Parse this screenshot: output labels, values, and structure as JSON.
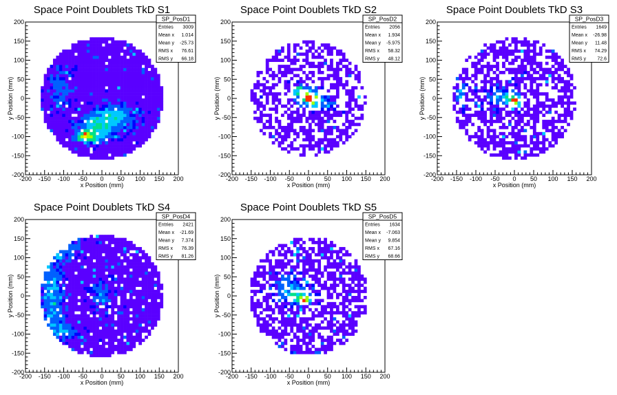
{
  "figure": {
    "background": "#ffffff",
    "colormap": [
      "#5a00ff",
      "#0000ff",
      "#0060ff",
      "#00c8ff",
      "#00e08a",
      "#a0ff00",
      "#ffee00",
      "#ff3000"
    ]
  },
  "chart_data": [
    {
      "type": "heatmap",
      "title": "Space Point Doublets TkD S1",
      "xlabel": "x Position (mm)",
      "ylabel": "y Position (mm)",
      "xlim": [
        -200,
        200
      ],
      "ylim": [
        -200,
        200
      ],
      "xticks": [
        -200,
        -150,
        -100,
        -50,
        0,
        50,
        100,
        150,
        200
      ],
      "yticks": [
        -200,
        -150,
        -100,
        -50,
        0,
        50,
        100,
        150,
        200
      ],
      "stats": {
        "name": "SP_PosD1",
        "rows": [
          [
            "Entries",
            "3009"
          ],
          [
            "Mean x",
            "1.014"
          ],
          [
            "Mean y",
            "-25.73"
          ],
          [
            "RMS x",
            "76.61"
          ],
          [
            "RMS y",
            "66.18"
          ]
        ]
      },
      "data_radius": 160,
      "fill_fraction": 0.97,
      "hotspots": [
        {
          "x": -40,
          "y": -100,
          "sx": 20,
          "sy": 10,
          "w": 4.0
        },
        {
          "x": -10,
          "y": -75,
          "sx": 35,
          "sy": 20,
          "w": 2.5
        },
        {
          "x": 30,
          "y": -45,
          "sx": 40,
          "sy": 20,
          "w": 2.0
        },
        {
          "x": -110,
          "y": 30,
          "sx": 20,
          "sy": 40,
          "w": 1.2
        }
      ]
    },
    {
      "type": "heatmap",
      "title": "Space Point Doublets TkD S2",
      "xlabel": "x Position (mm)",
      "ylabel": "y Position (mm)",
      "xlim": [
        -200,
        200
      ],
      "ylim": [
        -200,
        200
      ],
      "xticks": [
        -200,
        -150,
        -100,
        -50,
        0,
        50,
        100,
        150,
        200
      ],
      "yticks": [
        -200,
        -150,
        -100,
        -50,
        0,
        50,
        100,
        150,
        200
      ],
      "stats": {
        "name": "SP_PosD2",
        "rows": [
          [
            "Entries",
            "2056"
          ],
          [
            "Mean x",
            "1.934"
          ],
          [
            "Mean y",
            "-5.975"
          ],
          [
            "RMS x",
            "58.32"
          ],
          [
            "RMS y",
            "48.12"
          ]
        ]
      },
      "data_radius": 150,
      "fill_fraction": 0.55,
      "hotspots": [
        {
          "x": 5,
          "y": 0,
          "sx": 15,
          "sy": 10,
          "w": 5.0
        },
        {
          "x": -15,
          "y": 15,
          "sx": 25,
          "sy": 12,
          "w": 3.0
        },
        {
          "x": 30,
          "y": -15,
          "sx": 30,
          "sy": 12,
          "w": 1.8
        }
      ]
    },
    {
      "type": "heatmap",
      "title": "Space Point Doublets TkD S3",
      "xlabel": "x Position (mm)",
      "ylabel": "y Position (mm)",
      "xlim": [
        -200,
        200
      ],
      "ylim": [
        -200,
        200
      ],
      "xticks": [
        -200,
        -150,
        -100,
        -50,
        0,
        50,
        100,
        150,
        200
      ],
      "yticks": [
        -200,
        -150,
        -100,
        -50,
        0,
        50,
        100,
        150,
        200
      ],
      "stats": {
        "name": "SP_PosD3",
        "rows": [
          [
            "Entries",
            "1649"
          ],
          [
            "Mean x",
            "-26.98"
          ],
          [
            "Mean y",
            "11.48"
          ],
          [
            "RMS x",
            "74.29"
          ],
          [
            "RMS y",
            "72.6"
          ]
        ]
      },
      "data_radius": 160,
      "fill_fraction": 0.6,
      "hotspots": [
        {
          "x": 0,
          "y": -5,
          "sx": 10,
          "sy": 8,
          "w": 5.5
        },
        {
          "x": -30,
          "y": 5,
          "sx": 30,
          "sy": 15,
          "w": 2.0
        },
        {
          "x": -140,
          "y": 10,
          "sx": 10,
          "sy": 25,
          "w": 1.5
        }
      ]
    },
    {
      "type": "heatmap",
      "title": "Space Point Doublets TkD S4",
      "xlabel": "x Position (mm)",
      "ylabel": "y Position (mm)",
      "xlim": [
        -200,
        200
      ],
      "ylim": [
        -200,
        200
      ],
      "xticks": [
        -200,
        -150,
        -100,
        -50,
        0,
        50,
        100,
        150,
        200
      ],
      "yticks": [
        -200,
        -150,
        -100,
        -50,
        0,
        50,
        100,
        150,
        200
      ],
      "stats": {
        "name": "SP_PosD4",
        "rows": [
          [
            "Entries",
            "2421"
          ],
          [
            "Mean x",
            "-21.69"
          ],
          [
            "Mean y",
            "7.374"
          ],
          [
            "RMS x",
            "76.39"
          ],
          [
            "RMS y",
            "81.26"
          ]
        ]
      },
      "data_radius": 160,
      "fill_fraction": 0.92,
      "hotspots": [
        {
          "x": -130,
          "y": 0,
          "sx": 20,
          "sy": 60,
          "w": 2.0
        },
        {
          "x": -110,
          "y": 120,
          "sx": 30,
          "sy": 20,
          "w": 1.8
        },
        {
          "x": -100,
          "y": -90,
          "sx": 25,
          "sy": 15,
          "w": 1.8
        },
        {
          "x": 0,
          "y": 0,
          "sx": 20,
          "sy": 20,
          "w": 1.5
        }
      ]
    },
    {
      "type": "heatmap",
      "title": "Space Point Doublets TkD S5",
      "xlabel": "x Position (mm)",
      "ylabel": "y Position (mm)",
      "xlim": [
        -200,
        200
      ],
      "ylim": [
        -200,
        200
      ],
      "xticks": [
        -200,
        -150,
        -100,
        -50,
        0,
        50,
        100,
        150,
        200
      ],
      "yticks": [
        -200,
        -150,
        -100,
        -50,
        0,
        50,
        100,
        150,
        200
      ],
      "stats": {
        "name": "SP_PosD5",
        "rows": [
          [
            "Entries",
            "1634"
          ],
          [
            "Mean x",
            "-7.063"
          ],
          [
            "Mean y",
            "9.854"
          ],
          [
            "RMS x",
            "67.16"
          ],
          [
            "RMS y",
            "68.66"
          ]
        ]
      },
      "data_radius": 155,
      "fill_fraction": 0.65,
      "hotspots": [
        {
          "x": -10,
          "y": -10,
          "sx": 10,
          "sy": 8,
          "w": 5.0
        },
        {
          "x": -30,
          "y": 0,
          "sx": 25,
          "sy": 15,
          "w": 2.2
        },
        {
          "x": -50,
          "y": 30,
          "sx": 30,
          "sy": 20,
          "w": 1.2
        }
      ]
    }
  ]
}
